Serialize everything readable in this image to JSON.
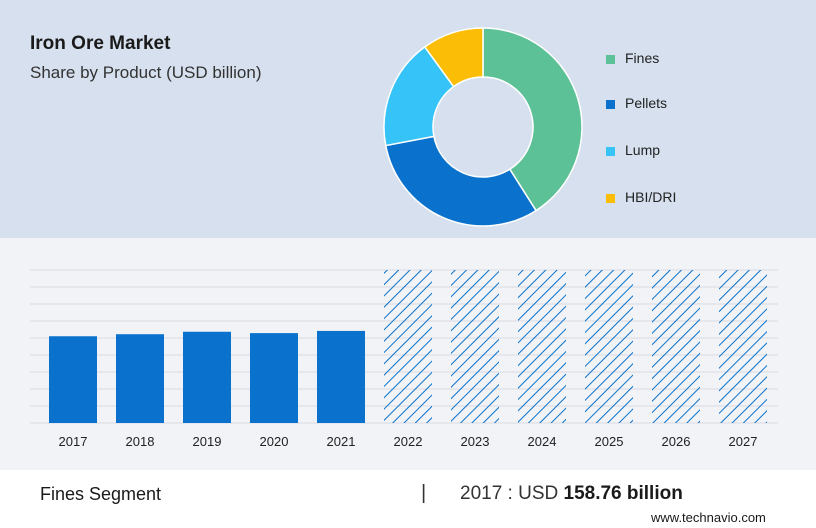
{
  "header": {
    "title": "Iron Ore Market",
    "subtitle": "Share by Product (USD billion)"
  },
  "legend": [
    {
      "label": "Fines",
      "color": "#5cc196"
    },
    {
      "label": "Pellets",
      "color": "#0a72cc"
    },
    {
      "label": "Lump",
      "color": "#36c3f7"
    },
    {
      "label": "HBI/DRI",
      "color": "#fbbd05"
    }
  ],
  "footer": {
    "segment_label": "Fines Segment",
    "divider": "|",
    "value_prefix": "2017 : USD ",
    "value_bold": "158.76 billion",
    "site": "www.technavio.com"
  },
  "chart_data": [
    {
      "type": "pie",
      "style": "donut",
      "categories": [
        "Fines",
        "Pellets",
        "Lump",
        "HBI/DRI"
      ],
      "values": [
        41,
        31,
        18,
        10
      ],
      "colors": [
        "#5cc196",
        "#0a72cc",
        "#36c3f7",
        "#fbbd05"
      ]
    },
    {
      "type": "bar",
      "categories": [
        "2017",
        "2018",
        "2019",
        "2020",
        "2021",
        "2022",
        "2023",
        "2024",
        "2025",
        "2026",
        "2027"
      ],
      "values": [
        158.76,
        162.5,
        167.0,
        164.5,
        168.5,
        null,
        null,
        null,
        null,
        null,
        null
      ],
      "forecast_years": [
        "2022",
        "2023",
        "2024",
        "2025",
        "2026",
        "2027"
      ],
      "bar_color": "#0a72cc",
      "gridlines": true,
      "axis_labels_shown": false
    }
  ]
}
